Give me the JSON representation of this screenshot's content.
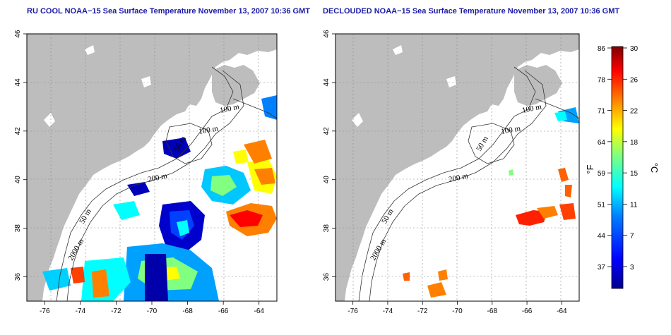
{
  "titles": {
    "left": "RU COOL NOAA−15 Sea Surface Temperature November 13, 2007 10:36 GMT",
    "right": "DECLOUDED NOAA−15 Sea Surface Temperature November 13, 2007 10:36 GMT"
  },
  "axes": {
    "lon_ticks": [
      "-76",
      "-74",
      "-72",
      "-70",
      "-68",
      "-66",
      "-64"
    ],
    "lat_ticks": [
      "36",
      "38",
      "40",
      "42",
      "44",
      "46"
    ],
    "lon_range": [
      -77,
      -63
    ],
    "lat_range": [
      35,
      46
    ]
  },
  "contour_labels": {
    "c100a": "100 m",
    "c100b": "100 m",
    "c50": "50 m",
    "c200": "200 m",
    "c50b": "50 m",
    "c2000": "2000 m"
  },
  "colorbar": {
    "fahrenheit_ticks": [
      "86",
      "78",
      "71",
      "64",
      "59",
      "51",
      "44",
      "37"
    ],
    "celsius_ticks": [
      "30",
      "26",
      "22",
      "18",
      "15",
      "11",
      "7",
      "3"
    ],
    "unit_left": "°F",
    "unit_right": "°C",
    "colors": [
      "#00008f",
      "#0000ff",
      "#0080ff",
      "#00ffff",
      "#80ff80",
      "#ffff00",
      "#ff8000",
      "#ff0000",
      "#800000"
    ]
  },
  "land_color": "#bdbdbd"
}
